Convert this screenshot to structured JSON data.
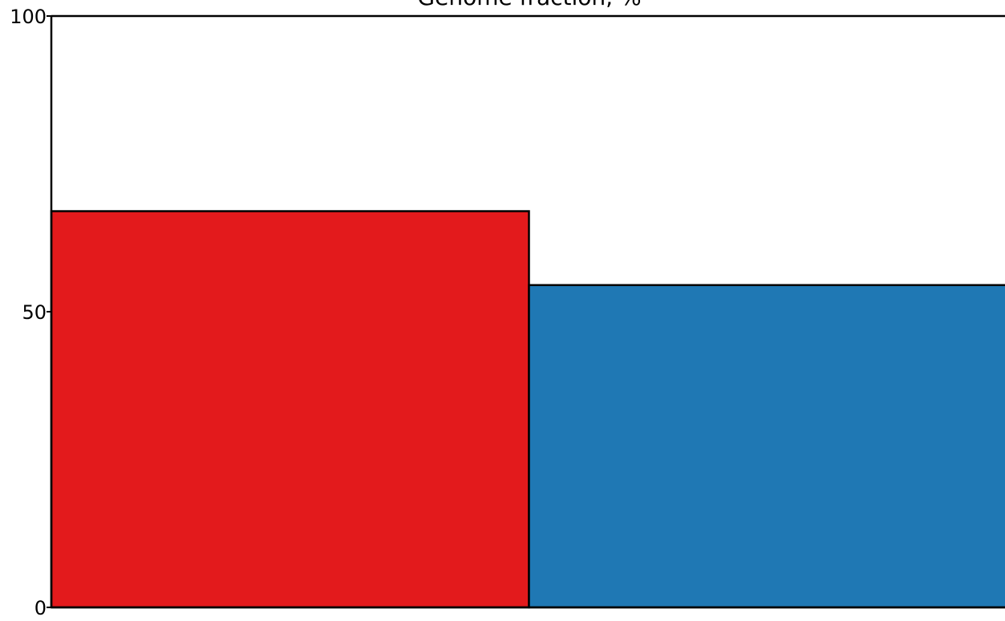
{
  "chart_data": {
    "type": "bar",
    "title": "Genome fraction, %",
    "xlabel": "",
    "ylabel": "",
    "ylim": [
      0,
      100
    ],
    "yticks": [
      "0",
      "50",
      "100"
    ],
    "grid": false,
    "categories": [
      "",
      ""
    ],
    "values": [
      67,
      54.5
    ],
    "colors": [
      "#e31a1c",
      "#1f78b4"
    ],
    "edge_color": "#000000"
  }
}
